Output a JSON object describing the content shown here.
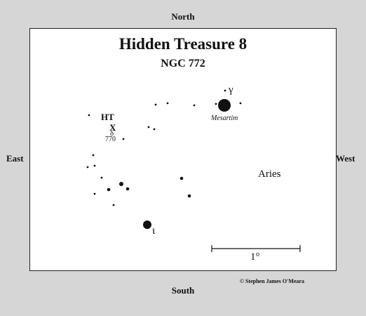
{
  "directions": {
    "north": "North",
    "south": "South",
    "east": "East",
    "west": "West"
  },
  "title": "Hidden Treasure 8",
  "subtitle": "NGC 772",
  "labels": {
    "ht": "HT",
    "x": "X",
    "delta": "δ",
    "ngc770": "770",
    "gamma": "γ",
    "mesartim": "Mesartim",
    "iota": "ι",
    "aries": "Aries"
  },
  "scale_bar": {
    "label": "1°"
  },
  "credit": "© Stephen James O'Meara",
  "colors": {
    "background": "#d6d6d6",
    "chart": "#ffffff",
    "ink": "#111111"
  }
}
